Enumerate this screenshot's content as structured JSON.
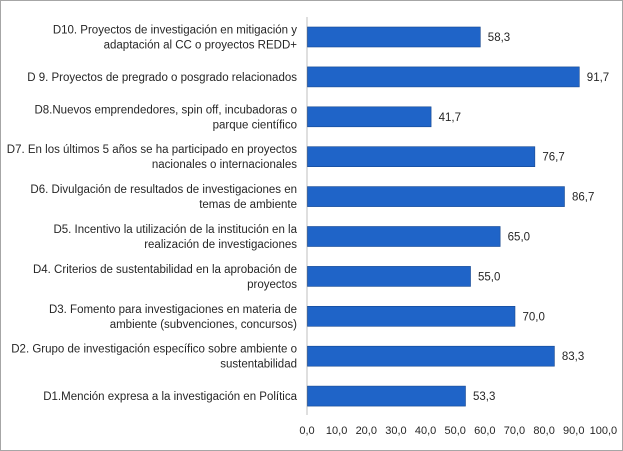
{
  "chart_data": {
    "type": "bar",
    "orientation": "horizontal",
    "title": "",
    "xlabel": "",
    "ylabel": "",
    "xlim": [
      0,
      100
    ],
    "xticks": [
      "0,0",
      "10,0",
      "20,0",
      "30,0",
      "40,0",
      "50,0",
      "60,0",
      "70,0",
      "80,0",
      "90,0",
      "100,0"
    ],
    "grid": false,
    "legend": "none",
    "bar_color": "#1f64c8",
    "categories": [
      [
        "D10. Proyectos de investigación en mitigación y",
        "adaptación al CC o proyectos REDD+"
      ],
      [
        "D 9. Proyectos de pregrado o posgrado relacionados"
      ],
      [
        "D8.Nuevos emprendedores, spin off, incubadoras o",
        "parque científico"
      ],
      [
        "D7. En los últimos 5 años se ha participado en proyectos",
        "nacionales o internacionales"
      ],
      [
        "D6. Divulgación de resultados de investigaciones en",
        "temas de ambiente"
      ],
      [
        "D5. Incentivo la utilización de la institución en la",
        "realización de investigaciones"
      ],
      [
        "D4. Criterios de sustentabilidad en la aprobación de",
        "proyectos"
      ],
      [
        "D3. Fomento para investigaciones en materia de",
        "ambiente (subvenciones, concursos)"
      ],
      [
        "D2. Grupo de investigación específico sobre ambiente o",
        "sustentabilidad"
      ],
      [
        "D1.Mención expresa a la investigación en Política"
      ]
    ],
    "values": [
      58.3,
      91.7,
      41.7,
      76.7,
      86.7,
      65.0,
      55.0,
      70.0,
      83.3,
      53.3
    ],
    "value_labels": [
      "58,3",
      "91,7",
      "41,7",
      "76,7",
      "86,7",
      "65,0",
      "55,0",
      "70,0",
      "83,3",
      "53,3"
    ]
  }
}
